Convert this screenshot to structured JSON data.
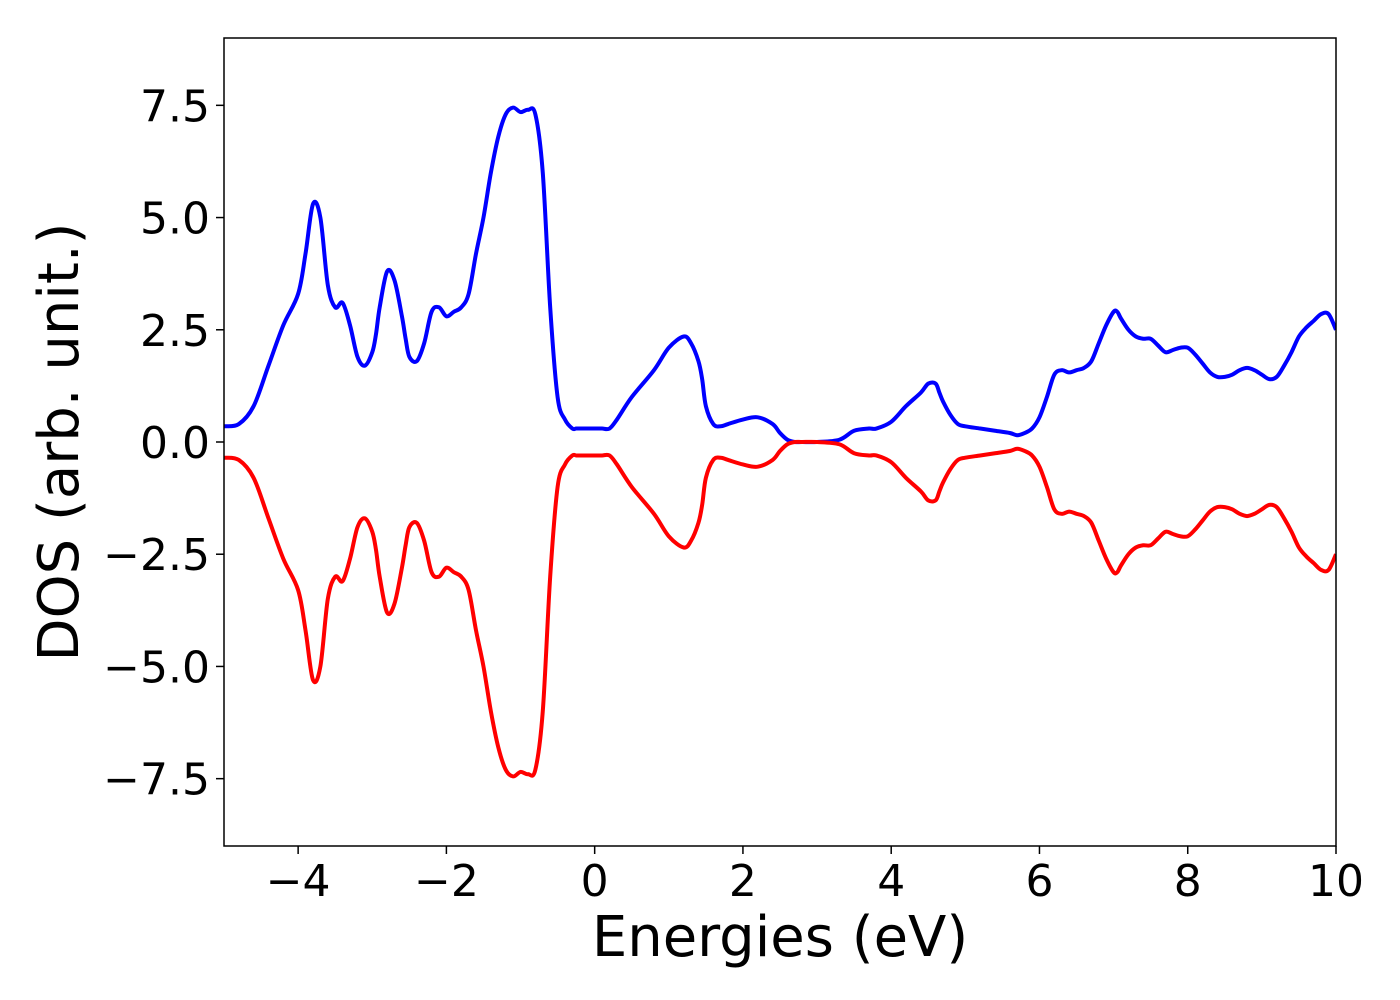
{
  "chart_data": {
    "type": "line",
    "title": "",
    "xlabel": "Energies (eV)",
    "ylabel": "DOS (arb. unit.)",
    "xlim": [
      -5,
      10
    ],
    "ylim": [
      -9,
      9
    ],
    "xticks": [
      -4,
      -2,
      0,
      2,
      4,
      6,
      8,
      10
    ],
    "xtick_labels": [
      "−4",
      "−2",
      "0",
      "2",
      "4",
      "6",
      "8",
      "10"
    ],
    "yticks": [
      -7.5,
      -5.0,
      -2.5,
      0.0,
      2.5,
      5.0,
      7.5
    ],
    "ytick_labels": [
      "−7.5",
      "−5.0",
      "−2.5",
      "0.0",
      "2.5",
      "5.0",
      "7.5"
    ],
    "grid": false,
    "legend": "none",
    "series": [
      {
        "color": "#0000ff",
        "x": [
          -5.0,
          -4.8,
          -4.6,
          -4.4,
          -4.2,
          -4.0,
          -3.9,
          -3.8,
          -3.7,
          -3.6,
          -3.5,
          -3.4,
          -3.3,
          -3.2,
          -3.1,
          -3.0,
          -2.95,
          -2.9,
          -2.8,
          -2.7,
          -2.6,
          -2.55,
          -2.5,
          -2.4,
          -2.3,
          -2.2,
          -2.1,
          -2.0,
          -1.9,
          -1.8,
          -1.7,
          -1.6,
          -1.5,
          -1.4,
          -1.3,
          -1.2,
          -1.1,
          -1.0,
          -0.9,
          -0.8,
          -0.7,
          -0.6,
          -0.5,
          -0.4,
          -0.3,
          -0.25,
          -0.2,
          -0.1,
          0.0,
          0.1,
          0.2,
          0.3,
          0.5,
          0.8,
          1.0,
          1.2,
          1.3,
          1.4,
          1.45,
          1.5,
          1.6,
          1.7,
          1.8,
          2.0,
          2.2,
          2.4,
          2.5,
          2.6,
          2.7,
          2.8,
          3.0,
          3.3,
          3.5,
          3.7,
          3.8,
          4.0,
          4.2,
          4.4,
          4.5,
          4.6,
          4.65,
          4.7,
          4.8,
          4.9,
          5.0,
          5.2,
          5.4,
          5.6,
          5.7,
          5.8,
          5.9,
          6.0,
          6.1,
          6.2,
          6.3,
          6.4,
          6.5,
          6.6,
          6.7,
          6.8,
          6.9,
          7.0,
          7.05,
          7.1,
          7.2,
          7.3,
          7.4,
          7.5,
          7.6,
          7.7,
          7.8,
          7.9,
          8.0,
          8.1,
          8.2,
          8.3,
          8.4,
          8.5,
          8.6,
          8.7,
          8.8,
          8.9,
          9.0,
          9.1,
          9.2,
          9.3,
          9.4,
          9.5,
          9.6,
          9.7,
          9.8,
          9.9,
          10.0
        ],
        "y": [
          0.35,
          0.4,
          0.8,
          1.7,
          2.6,
          3.3,
          4.2,
          5.3,
          5.0,
          3.5,
          3.0,
          3.1,
          2.6,
          1.9,
          1.7,
          2.0,
          2.4,
          3.0,
          3.8,
          3.6,
          2.8,
          2.3,
          1.9,
          1.8,
          2.2,
          2.9,
          3.0,
          2.8,
          2.9,
          3.0,
          3.3,
          4.2,
          5.0,
          6.0,
          6.8,
          7.3,
          7.45,
          7.35,
          7.4,
          7.3,
          6.0,
          3.0,
          1.0,
          0.5,
          0.3,
          0.3,
          0.3,
          0.3,
          0.3,
          0.3,
          0.3,
          0.5,
          1.0,
          1.6,
          2.1,
          2.35,
          2.2,
          1.8,
          1.4,
          0.8,
          0.4,
          0.35,
          0.4,
          0.5,
          0.55,
          0.4,
          0.2,
          0.05,
          0.0,
          0.0,
          0.0,
          0.05,
          0.25,
          0.3,
          0.3,
          0.45,
          0.8,
          1.1,
          1.3,
          1.3,
          1.1,
          0.9,
          0.6,
          0.4,
          0.35,
          0.3,
          0.25,
          0.2,
          0.15,
          0.2,
          0.3,
          0.55,
          1.0,
          1.5,
          1.6,
          1.55,
          1.6,
          1.65,
          1.8,
          2.2,
          2.6,
          2.9,
          2.9,
          2.75,
          2.5,
          2.35,
          2.3,
          2.3,
          2.15,
          2.0,
          2.05,
          2.1,
          2.1,
          1.95,
          1.75,
          1.55,
          1.45,
          1.45,
          1.5,
          1.6,
          1.65,
          1.6,
          1.5,
          1.4,
          1.45,
          1.7,
          2.0,
          2.35,
          2.55,
          2.7,
          2.85,
          2.85,
          2.5
        ]
      },
      {
        "color": "#ff0000",
        "x": [
          -5.0,
          -4.8,
          -4.6,
          -4.4,
          -4.2,
          -4.0,
          -3.9,
          -3.8,
          -3.7,
          -3.6,
          -3.5,
          -3.4,
          -3.3,
          -3.2,
          -3.1,
          -3.0,
          -2.95,
          -2.9,
          -2.8,
          -2.7,
          -2.6,
          -2.55,
          -2.5,
          -2.4,
          -2.3,
          -2.2,
          -2.1,
          -2.0,
          -1.9,
          -1.8,
          -1.7,
          -1.6,
          -1.5,
          -1.4,
          -1.3,
          -1.2,
          -1.1,
          -1.0,
          -0.9,
          -0.8,
          -0.7,
          -0.6,
          -0.5,
          -0.4,
          -0.3,
          -0.25,
          -0.2,
          -0.1,
          0.0,
          0.1,
          0.2,
          0.3,
          0.5,
          0.8,
          1.0,
          1.2,
          1.3,
          1.4,
          1.45,
          1.5,
          1.6,
          1.7,
          1.8,
          2.0,
          2.2,
          2.4,
          2.5,
          2.6,
          2.7,
          2.8,
          3.0,
          3.3,
          3.5,
          3.7,
          3.8,
          4.0,
          4.2,
          4.4,
          4.5,
          4.6,
          4.65,
          4.7,
          4.8,
          4.9,
          5.0,
          5.2,
          5.4,
          5.6,
          5.7,
          5.8,
          5.9,
          6.0,
          6.1,
          6.2,
          6.3,
          6.4,
          6.5,
          6.6,
          6.7,
          6.8,
          6.9,
          7.0,
          7.05,
          7.1,
          7.2,
          7.3,
          7.4,
          7.5,
          7.6,
          7.7,
          7.8,
          7.9,
          8.0,
          8.1,
          8.2,
          8.3,
          8.4,
          8.5,
          8.6,
          8.7,
          8.8,
          8.9,
          9.0,
          9.1,
          9.2,
          9.3,
          9.4,
          9.5,
          9.6,
          9.7,
          9.8,
          9.9,
          10.0
        ],
        "y": [
          -0.35,
          -0.4,
          -0.8,
          -1.7,
          -2.6,
          -3.3,
          -4.2,
          -5.3,
          -5.0,
          -3.5,
          -3.0,
          -3.1,
          -2.6,
          -1.9,
          -1.7,
          -2.0,
          -2.4,
          -3.0,
          -3.8,
          -3.6,
          -2.8,
          -2.3,
          -1.9,
          -1.8,
          -2.2,
          -2.9,
          -3.0,
          -2.8,
          -2.9,
          -3.0,
          -3.3,
          -4.2,
          -5.0,
          -6.0,
          -6.8,
          -7.3,
          -7.45,
          -7.35,
          -7.4,
          -7.3,
          -6.0,
          -3.0,
          -1.0,
          -0.5,
          -0.3,
          -0.3,
          -0.3,
          -0.3,
          -0.3,
          -0.3,
          -0.3,
          -0.5,
          -1.0,
          -1.6,
          -2.1,
          -2.35,
          -2.2,
          -1.8,
          -1.4,
          -0.8,
          -0.4,
          -0.35,
          -0.4,
          -0.5,
          -0.55,
          -0.4,
          -0.2,
          -0.05,
          0.0,
          0.0,
          0.0,
          -0.05,
          -0.25,
          -0.3,
          -0.3,
          -0.45,
          -0.8,
          -1.1,
          -1.3,
          -1.3,
          -1.1,
          -0.9,
          -0.6,
          -0.4,
          -0.35,
          -0.3,
          -0.25,
          -0.2,
          -0.15,
          -0.2,
          -0.3,
          -0.55,
          -1.0,
          -1.5,
          -1.6,
          -1.55,
          -1.6,
          -1.65,
          -1.8,
          -2.2,
          -2.6,
          -2.9,
          -2.9,
          -2.75,
          -2.5,
          -2.35,
          -2.3,
          -2.3,
          -2.15,
          -2.0,
          -2.05,
          -2.1,
          -2.1,
          -1.95,
          -1.75,
          -1.55,
          -1.45,
          -1.45,
          -1.5,
          -1.6,
          -1.65,
          -1.6,
          -1.5,
          -1.4,
          -1.45,
          -1.7,
          -2.0,
          -2.35,
          -2.55,
          -2.7,
          -2.85,
          -2.85,
          -2.5
        ]
      }
    ]
  }
}
